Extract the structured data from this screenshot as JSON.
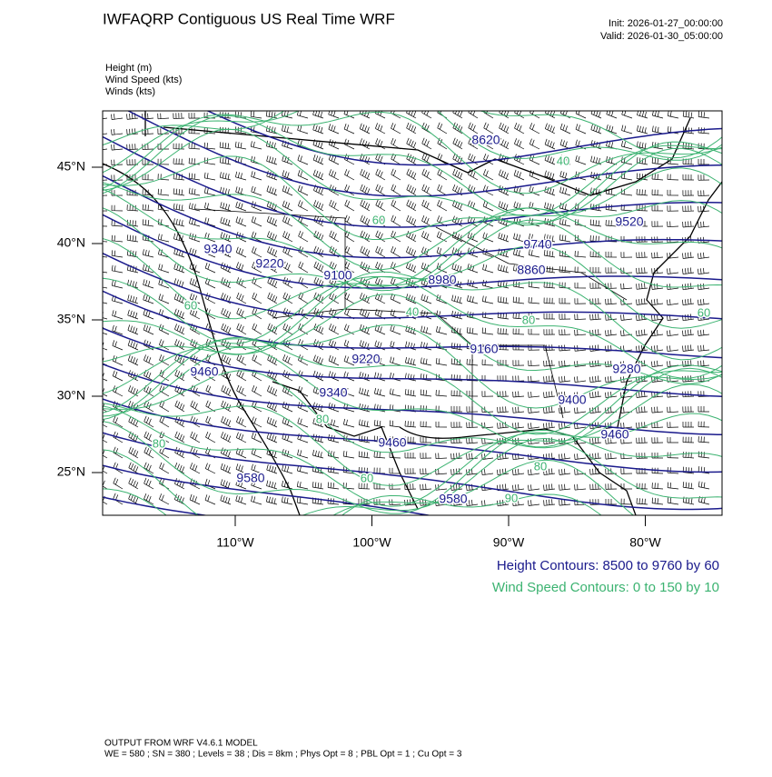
{
  "header": {
    "title": "IWFAQRP Contiguous US Real Time WRF",
    "init": "Init: 2026-01-27_00:00:00",
    "valid": "Valid: 2026-01-30_05:00:00"
  },
  "legend": [
    "Height   (m)",
    "Wind Speed   (kts)",
    "Winds   (kts)"
  ],
  "map": {
    "lat_ticks": [
      {
        "value": 45,
        "label": "45°N"
      },
      {
        "value": 40,
        "label": "40°N"
      },
      {
        "value": 35,
        "label": "35°N"
      },
      {
        "value": 30,
        "label": "30°N"
      },
      {
        "value": 25,
        "label": "25°N"
      }
    ],
    "lon_ticks": [
      {
        "value": -110,
        "label": "110°W"
      },
      {
        "value": -100,
        "label": "100°W"
      },
      {
        "value": -90,
        "label": "90°W"
      },
      {
        "value": -80,
        "label": "80°W"
      }
    ],
    "height_contour_labels": [
      8620,
      9520,
      9340,
      9220,
      9100,
      8980,
      9740,
      8860,
      9160,
      9220,
      9460,
      9340,
      9280,
      9400,
      9460,
      9460,
      9580,
      9580
    ],
    "wind_speed_contour_labels": [
      40,
      60,
      40,
      80,
      60,
      80,
      80,
      60,
      80,
      90,
      60
    ]
  },
  "contour_info": {
    "height": "Height Contours: 8500 to 9760 by 60",
    "wind_speed": "Wind Speed Contours: 0 to 150 by 10"
  },
  "footer": {
    "model": "OUTPUT FROM WRF V4.6.1 MODEL",
    "settings": "WE = 580 ; SN = 380 ; Levels = 38 ; Dis = 8km ; Phys Opt = 8 ; PBL Opt = 1 ; Cu Opt = 3"
  }
}
